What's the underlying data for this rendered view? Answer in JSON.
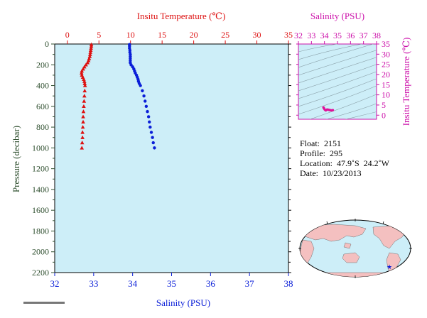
{
  "colors": {
    "temperature": "#dd1111",
    "salinity": "#0a1ed8",
    "ts_axis": "#cc11aa",
    "pressure_axis": "#2f4f2f",
    "plot_bg": "#cdeef8",
    "land": "#f4c0c0",
    "ocean": "#cdeef8"
  },
  "chart_data": [
    {
      "type": "scatter",
      "top_axis_label": "Insitu Temperature (℃)",
      "bottom_axis_label": "Salinity (PSU)",
      "left_axis_label": "Pressure (decibar)",
      "temp_ticks": [
        "0",
        "5",
        "10",
        "15",
        "20",
        "25",
        "30",
        "35"
      ],
      "sal_ticks": [
        "32",
        "33",
        "34",
        "35",
        "36",
        "37",
        "38"
      ],
      "pres_ticks": [
        "0",
        "200",
        "400",
        "600",
        "800",
        "1000",
        "1200",
        "1400",
        "1600",
        "1800",
        "2000",
        "2200"
      ],
      "temp_range": [
        -2,
        35
      ],
      "sal_range": [
        32,
        38
      ],
      "pressure_range": [
        0,
        2200
      ],
      "pressure_inverted": true,
      "temperature_profile": {
        "marker": "triangle",
        "pressure": [
          5,
          20,
          40,
          60,
          80,
          100,
          120,
          140,
          160,
          180,
          200,
          220,
          240,
          260,
          280,
          300,
          320,
          340,
          360,
          380,
          400,
          450,
          500,
          550,
          600,
          650,
          700,
          750,
          800,
          850,
          900,
          950,
          1000
        ],
        "temp": [
          3.8,
          3.8,
          3.75,
          3.7,
          3.65,
          3.6,
          3.55,
          3.45,
          3.35,
          3.2,
          2.95,
          2.7,
          2.5,
          2.3,
          2.25,
          2.3,
          2.45,
          2.6,
          2.7,
          2.75,
          2.8,
          2.75,
          2.7,
          2.65,
          2.6,
          2.55,
          2.5,
          2.5,
          2.45,
          2.4,
          2.4,
          2.35,
          2.3
        ]
      },
      "salinity_profile": {
        "marker": "circle",
        "pressure": [
          5,
          20,
          40,
          60,
          80,
          100,
          120,
          140,
          160,
          180,
          200,
          220,
          240,
          260,
          280,
          300,
          320,
          340,
          360,
          380,
          400,
          450,
          500,
          550,
          600,
          650,
          700,
          750,
          800,
          850,
          900,
          950,
          1000
        ],
        "sal": [
          33.92,
          33.92,
          33.92,
          33.93,
          33.93,
          33.94,
          33.94,
          33.94,
          33.94,
          33.94,
          33.96,
          34.0,
          34.03,
          34.05,
          34.07,
          34.1,
          34.12,
          34.14,
          34.15,
          34.17,
          34.2,
          34.25,
          34.29,
          34.32,
          34.35,
          34.38,
          34.41,
          34.43,
          34.45,
          34.48,
          34.51,
          34.53,
          34.56
        ]
      }
    },
    {
      "type": "scatter",
      "title": "Salinity (PSU)",
      "ylabel": "Insitu Temperature (℃)",
      "x_ticks": [
        "32",
        "33",
        "34",
        "35",
        "36",
        "37",
        "38"
      ],
      "y_ticks": [
        "0",
        "5",
        "10",
        "15",
        "20",
        "25",
        "30",
        "35"
      ],
      "xlim": [
        32,
        38
      ],
      "ylim": [
        -2,
        35
      ],
      "points": {
        "sal": [
          33.92,
          33.93,
          33.94,
          33.95,
          33.96,
          34.0,
          34.03,
          34.07,
          34.1,
          34.15,
          34.2,
          34.25,
          34.29,
          34.32,
          34.35,
          34.38,
          34.41,
          34.45,
          34.48,
          34.51,
          34.53,
          34.56,
          34.6,
          34.65
        ],
        "temp": [
          3.8,
          3.75,
          3.65,
          3.55,
          3.35,
          2.95,
          2.7,
          2.5,
          2.3,
          2.6,
          2.8,
          2.75,
          2.7,
          2.65,
          2.6,
          2.55,
          2.5,
          2.45,
          2.4,
          2.4,
          2.35,
          2.3,
          2.4,
          2.5
        ]
      }
    }
  ],
  "info": {
    "float": "Float:  2151",
    "profile": "Profile:  295",
    "location": "Location:  47.9˚S  24.2˚W",
    "date": "Date:  10/23/2013"
  }
}
